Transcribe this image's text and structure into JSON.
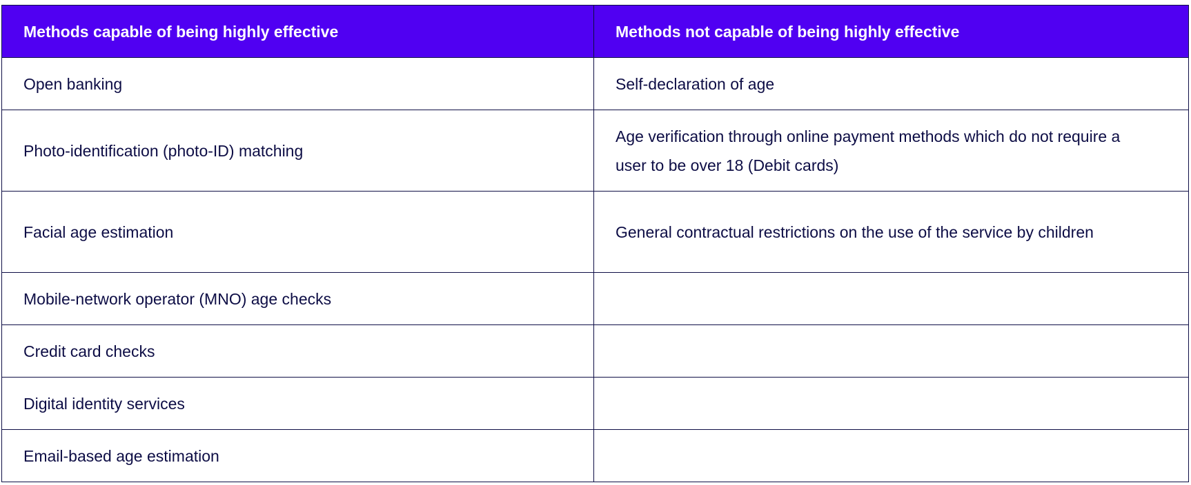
{
  "table": {
    "header": [
      "Methods capable of being highly effective",
      "Methods not capable of being highly effective"
    ],
    "rows": [
      [
        "Open banking",
        "Self-declaration of age"
      ],
      [
        "Photo-identification (photo-ID) matching",
        "Age verification through online payment methods which do not require a user to be over 18 (Debit cards)"
      ],
      [
        "Facial age estimation",
        "General contractual restrictions on the use of the service by children"
      ],
      [
        "Mobile-network operator (MNO) age checks"
      ],
      [
        "Credit card checks"
      ],
      [
        "Digital identity services"
      ],
      [
        "Email-based age estimation"
      ]
    ]
  }
}
